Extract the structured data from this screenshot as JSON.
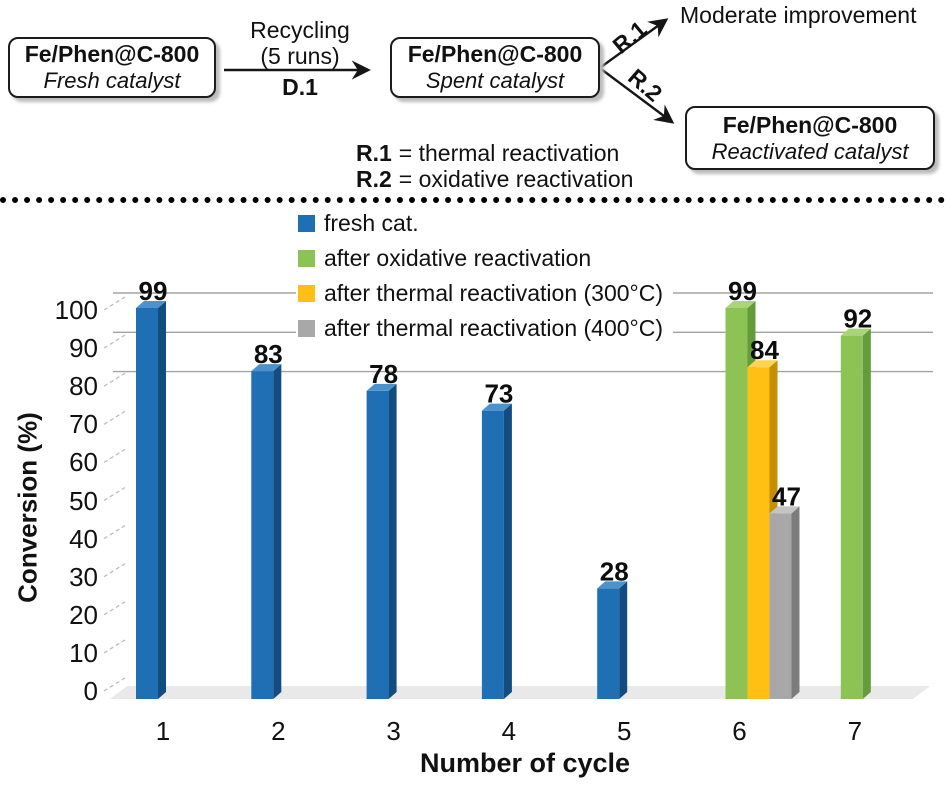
{
  "scheme": {
    "boxes": {
      "fresh": {
        "title": "Fe/Phen@C-800",
        "subtitle": "Fresh catalyst"
      },
      "spent": {
        "title": "Fe/Phen@C-800",
        "subtitle": "Spent catalyst"
      },
      "reactivated": {
        "title": "Fe/Phen@C-800",
        "subtitle": "Reactivated catalyst"
      }
    },
    "recycle_arrow": {
      "line1": "Recycling",
      "line2": "(5 runs)",
      "line3": "D.1"
    },
    "branch": {
      "r1": "R.1",
      "r2": "R.2",
      "r1_result": "Moderate improvement"
    },
    "definitions": [
      {
        "term": "R.1",
        "rest": "= thermal reactivation"
      },
      {
        "term": "R.2",
        "rest": "= oxidative reactivation"
      }
    ]
  },
  "chart_data": {
    "type": "bar",
    "title": "",
    "xlabel": "Number of cycle",
    "ylabel": "Conversion (%)",
    "ylim": [
      0,
      100
    ],
    "ytick_step": 10,
    "grid_on": "partial",
    "gridline_values": [
      80,
      90,
      100
    ],
    "legend_position": "top-center",
    "categories": [
      "1",
      "2",
      "3",
      "4",
      "5",
      "6",
      "7"
    ],
    "series": [
      {
        "name": "fresh cat.",
        "color": "#1F6FB4",
        "color_side": "#134C80",
        "color_top": "#4C93CC",
        "values": [
          99,
          83,
          78,
          73,
          28,
          null,
          null
        ]
      },
      {
        "name": "after oxidative reactivation",
        "color": "#8DC355",
        "color_side": "#649B3B",
        "color_top": "#AAD47A",
        "values": [
          null,
          null,
          null,
          null,
          null,
          99,
          92
        ]
      },
      {
        "name": "after thermal reactivation (300°C)",
        "color": "#FFC013",
        "color_side": "#C68F00",
        "color_top": "#FFD455",
        "values": [
          null,
          null,
          null,
          null,
          null,
          84,
          null
        ]
      },
      {
        "name": "after thermal reactivation (400°C)",
        "color": "#A8A8A8",
        "color_side": "#7C7C7C",
        "color_top": "#C4C4C4",
        "values": [
          null,
          null,
          null,
          null,
          null,
          47,
          null
        ]
      }
    ],
    "data_labels": [
      99,
      83,
      78,
      73,
      28,
      99,
      84,
      47,
      92
    ]
  }
}
